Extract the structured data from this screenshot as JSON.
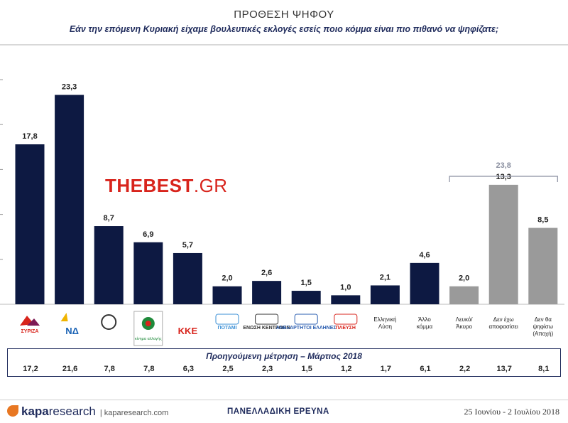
{
  "header": {
    "title": "ΠΡΟΘΕΣΗ ΨΗΦΟΥ",
    "subtitle": "Εάν την επόμενη Κυριακή είχαμε βουλευτικές εκλογές εσείς ποιο κόμμα είναι πιο πιθανό να ψηφίζατε;"
  },
  "watermark": {
    "bold": "THEBEST",
    "thin": ".GR"
  },
  "chart_data": {
    "type": "bar",
    "categories": [
      "ΣΥΡΙΖΑ",
      "ΝΔ",
      "Χρυσή Αυγή",
      "Κίνημα Αλλαγής",
      "ΚΚΕ",
      "Ποτάμι",
      "Ένωση Κεντρώων",
      "ΑΝΕΛ",
      "Πλεύση Ελευθερίας",
      "Ελληνική Λύση",
      "Άλλο κόμμα",
      "Λευκό/ Άκυρο",
      "Δεν έχω αποφασίσει",
      "Δεν θα ψηφίσω (Αποχή)"
    ],
    "values": [
      17.8,
      23.3,
      8.7,
      6.9,
      5.7,
      2.0,
      2.6,
      1.5,
      1.0,
      2.1,
      4.6,
      2.0,
      13.3,
      8.5
    ],
    "value_labels": [
      "17,8",
      "23,3",
      "8,7",
      "6,9",
      "5,7",
      "2,0",
      "2,6",
      "1,5",
      "1,0",
      "2,1",
      "4,6",
      "2,0",
      "13,3",
      "8,5"
    ],
    "bar_colors": [
      "#0d1942",
      "#0d1942",
      "#0d1942",
      "#0d1942",
      "#0d1942",
      "#0d1942",
      "#0d1942",
      "#0d1942",
      "#0d1942",
      "#0d1942",
      "#0d1942",
      "#9a9a9a",
      "#9a9a9a",
      "#9a9a9a"
    ],
    "ylim": [
      0,
      25
    ],
    "bracket": {
      "label": "23,8",
      "from_index": 11,
      "to_index": 13,
      "color": "#8a8fa0"
    },
    "previous": {
      "title": "Προηγούμενη μέτρηση – Μάρτιος 2018",
      "values": [
        "17,2",
        "21,6",
        "7,8",
        "7,8",
        "6,3",
        "2,5",
        "2,3",
        "1,5",
        "1,2",
        "1,7",
        "6,1",
        "2,2",
        "13,7",
        "8,1"
      ]
    }
  },
  "logos": [
    {
      "icon": "syriza-logo",
      "text": "ΣΥΡΙΖΑ",
      "color": "#d8241c"
    },
    {
      "icon": "nd-logo",
      "text": "ΝΔ",
      "color": "#1b63b5"
    },
    {
      "icon": "golden-dawn-logo",
      "text": "",
      "color": "#c0392b"
    },
    {
      "icon": "kinal-logo",
      "text": "κίνημα αλλαγής",
      "color": "#1f8a3b"
    },
    {
      "icon": "kke-logo",
      "text": "KKE",
      "color": "#d8241c"
    },
    {
      "icon": "potami-logo",
      "text": "ΠΟΤΑΜΙ",
      "color": "#3a8fd6"
    },
    {
      "icon": "enosi-kentroon-logo",
      "text": "ΕΝΩΣΗ ΚΕΝΤΡΩΩΝ",
      "color": "#333333"
    },
    {
      "icon": "anel-logo",
      "text": "ΑΝΕΞΑΡΤΗΤΟΙ ΕΛΛΗΝΕΣ",
      "color": "#2a5db0"
    },
    {
      "icon": "plefsi-logo",
      "text": "ΠΛΕΥΣΗ",
      "color": "#d8241c"
    },
    {
      "icon": "",
      "text": "Ελληνική Λύση",
      "color": "#222222"
    },
    {
      "icon": "",
      "text": "Άλλο κόμμα",
      "color": "#222222"
    },
    {
      "icon": "",
      "text": "Λευκό/ Άκυρο",
      "color": "#222222"
    },
    {
      "icon": "",
      "text": "Δεν έχω αποφασίσει",
      "color": "#222222"
    },
    {
      "icon": "",
      "text": "Δεν θα ψηφίσω (Αποχή)",
      "color": "#222222"
    }
  ],
  "footer": {
    "brand": "kapa",
    "brand_suffix": "research",
    "site": "| kaparesearch.com",
    "center": "ΠΑΝΕΛΛΑΔΙΚΗ ΕΡΕΥΝΑ",
    "dates": "25 Ιουνίου - 2 Ιουλίου 2018"
  }
}
